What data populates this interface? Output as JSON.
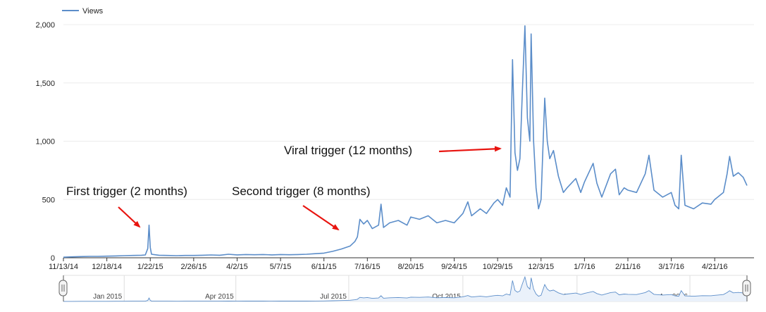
{
  "colors": {
    "series": "#5b8dc9",
    "arrow": "#e8140f",
    "grid": "#ececec",
    "axis": "#333333",
    "navigator_fill": "#eaf1fa"
  },
  "chart_data": {
    "type": "line",
    "title": "",
    "xlabel": "",
    "ylabel": "",
    "legend": {
      "position": "top-left",
      "entries": [
        "Views"
      ]
    },
    "grid": true,
    "ylim": [
      0,
      2000
    ],
    "xlim": [
      "2014-11-13",
      "2016-05-17"
    ],
    "y_ticks": [
      {
        "value": 0,
        "label": "0"
      },
      {
        "value": 500,
        "label": "500"
      },
      {
        "value": 1000,
        "label": "1,000"
      },
      {
        "value": 1500,
        "label": "1,500"
      },
      {
        "value": 2000,
        "label": "2,000"
      }
    ],
    "x_ticks": [
      {
        "date": "2014-11-13",
        "label": "11/13/14"
      },
      {
        "date": "2014-12-18",
        "label": "12/18/14"
      },
      {
        "date": "2015-01-22",
        "label": "1/22/15"
      },
      {
        "date": "2015-02-26",
        "label": "2/26/15"
      },
      {
        "date": "2015-04-02",
        "label": "4/2/15"
      },
      {
        "date": "2015-05-07",
        "label": "5/7/15"
      },
      {
        "date": "2015-06-11",
        "label": "6/11/15"
      },
      {
        "date": "2015-07-16",
        "label": "7/16/15"
      },
      {
        "date": "2015-08-20",
        "label": "8/20/15"
      },
      {
        "date": "2015-09-24",
        "label": "9/24/15"
      },
      {
        "date": "2015-10-29",
        "label": "10/29/15"
      },
      {
        "date": "2015-12-03",
        "label": "12/3/15"
      },
      {
        "date": "2016-01-07",
        "label": "1/7/16"
      },
      {
        "date": "2016-02-11",
        "label": "2/11/16"
      },
      {
        "date": "2016-03-17",
        "label": "3/17/16"
      },
      {
        "date": "2016-04-21",
        "label": "4/21/16"
      }
    ],
    "navigator_ticks": [
      {
        "date": "2015-01-01",
        "label": "Jan 2015"
      },
      {
        "date": "2015-04-01",
        "label": "Apr 2015"
      },
      {
        "date": "2015-07-01",
        "label": "Jul 2015"
      },
      {
        "date": "2015-10-01",
        "label": "Oct 2015"
      },
      {
        "date": "2016-01-01",
        "label": "Jan 2016"
      },
      {
        "date": "2016-04-01",
        "label": "Apr 2016"
      }
    ],
    "series": [
      {
        "name": "Views",
        "points": [
          [
            "2014-11-13",
            5
          ],
          [
            "2014-11-20",
            8
          ],
          [
            "2014-11-27",
            10
          ],
          [
            "2014-12-04",
            12
          ],
          [
            "2014-12-11",
            12
          ],
          [
            "2014-12-18",
            14
          ],
          [
            "2014-12-25",
            16
          ],
          [
            "2015-01-01",
            18
          ],
          [
            "2015-01-08",
            20
          ],
          [
            "2015-01-15",
            22
          ],
          [
            "2015-01-18",
            24
          ],
          [
            "2015-01-20",
            80
          ],
          [
            "2015-01-21",
            280
          ],
          [
            "2015-01-22",
            90
          ],
          [
            "2015-01-23",
            30
          ],
          [
            "2015-01-29",
            22
          ],
          [
            "2015-02-05",
            20
          ],
          [
            "2015-02-12",
            18
          ],
          [
            "2015-02-19",
            20
          ],
          [
            "2015-02-26",
            20
          ],
          [
            "2015-03-05",
            22
          ],
          [
            "2015-03-12",
            24
          ],
          [
            "2015-03-19",
            22
          ],
          [
            "2015-03-26",
            30
          ],
          [
            "2015-04-02",
            25
          ],
          [
            "2015-04-09",
            28
          ],
          [
            "2015-04-16",
            26
          ],
          [
            "2015-04-23",
            28
          ],
          [
            "2015-04-30",
            25
          ],
          [
            "2015-05-07",
            28
          ],
          [
            "2015-05-14",
            26
          ],
          [
            "2015-05-21",
            28
          ],
          [
            "2015-05-28",
            30
          ],
          [
            "2015-06-04",
            35
          ],
          [
            "2015-06-11",
            40
          ],
          [
            "2015-06-18",
            55
          ],
          [
            "2015-06-25",
            75
          ],
          [
            "2015-07-02",
            100
          ],
          [
            "2015-07-06",
            140
          ],
          [
            "2015-07-08",
            180
          ],
          [
            "2015-07-10",
            330
          ],
          [
            "2015-07-13",
            290
          ],
          [
            "2015-07-16",
            320
          ],
          [
            "2015-07-20",
            250
          ],
          [
            "2015-07-25",
            280
          ],
          [
            "2015-07-27",
            460
          ],
          [
            "2015-07-29",
            260
          ],
          [
            "2015-08-03",
            300
          ],
          [
            "2015-08-10",
            320
          ],
          [
            "2015-08-17",
            280
          ],
          [
            "2015-08-20",
            350
          ],
          [
            "2015-08-27",
            330
          ],
          [
            "2015-09-03",
            360
          ],
          [
            "2015-09-10",
            300
          ],
          [
            "2015-09-17",
            320
          ],
          [
            "2015-09-24",
            300
          ],
          [
            "2015-10-01",
            380
          ],
          [
            "2015-10-05",
            480
          ],
          [
            "2015-10-08",
            360
          ],
          [
            "2015-10-15",
            420
          ],
          [
            "2015-10-20",
            380
          ],
          [
            "2015-10-26",
            470
          ],
          [
            "2015-10-29",
            500
          ],
          [
            "2015-11-02",
            450
          ],
          [
            "2015-11-05",
            600
          ],
          [
            "2015-11-08",
            520
          ],
          [
            "2015-11-10",
            1700
          ],
          [
            "2015-11-12",
            900
          ],
          [
            "2015-11-14",
            750
          ],
          [
            "2015-11-16",
            850
          ],
          [
            "2015-11-18",
            1450
          ],
          [
            "2015-11-20",
            1990
          ],
          [
            "2015-11-22",
            1200
          ],
          [
            "2015-11-24",
            1000
          ],
          [
            "2015-11-25",
            1920
          ],
          [
            "2015-11-27",
            1000
          ],
          [
            "2015-11-29",
            600
          ],
          [
            "2015-12-01",
            420
          ],
          [
            "2015-12-03",
            500
          ],
          [
            "2015-12-06",
            1370
          ],
          [
            "2015-12-08",
            1000
          ],
          [
            "2015-12-10",
            850
          ],
          [
            "2015-12-13",
            920
          ],
          [
            "2015-12-17",
            700
          ],
          [
            "2015-12-21",
            560
          ],
          [
            "2015-12-24",
            600
          ],
          [
            "2015-12-31",
            680
          ],
          [
            "2016-01-04",
            560
          ],
          [
            "2016-01-07",
            650
          ],
          [
            "2016-01-14",
            810
          ],
          [
            "2016-01-17",
            640
          ],
          [
            "2016-01-21",
            520
          ],
          [
            "2016-01-28",
            720
          ],
          [
            "2016-02-01",
            760
          ],
          [
            "2016-02-04",
            540
          ],
          [
            "2016-02-08",
            600
          ],
          [
            "2016-02-11",
            580
          ],
          [
            "2016-02-18",
            560
          ],
          [
            "2016-02-25",
            720
          ],
          [
            "2016-02-28",
            880
          ],
          [
            "2016-03-03",
            580
          ],
          [
            "2016-03-10",
            520
          ],
          [
            "2016-03-17",
            560
          ],
          [
            "2016-03-20",
            450
          ],
          [
            "2016-03-23",
            420
          ],
          [
            "2016-03-25",
            880
          ],
          [
            "2016-03-28",
            450
          ],
          [
            "2016-04-04",
            420
          ],
          [
            "2016-04-11",
            470
          ],
          [
            "2016-04-18",
            460
          ],
          [
            "2016-04-21",
            500
          ],
          [
            "2016-04-28",
            560
          ],
          [
            "2016-05-01",
            720
          ],
          [
            "2016-05-03",
            870
          ],
          [
            "2016-05-06",
            700
          ],
          [
            "2016-05-10",
            730
          ],
          [
            "2016-05-14",
            690
          ],
          [
            "2016-05-17",
            620
          ]
        ]
      }
    ],
    "annotations": [
      {
        "text": "First trigger (2 months)",
        "target_date": "2015-01-21",
        "target_value": 280
      },
      {
        "text": "Second trigger (8 months)",
        "target_date": "2015-06-30",
        "target_value": 130
      },
      {
        "text": "Viral trigger (12 months)",
        "target_date": "2015-11-09",
        "target_value": 940
      }
    ]
  }
}
